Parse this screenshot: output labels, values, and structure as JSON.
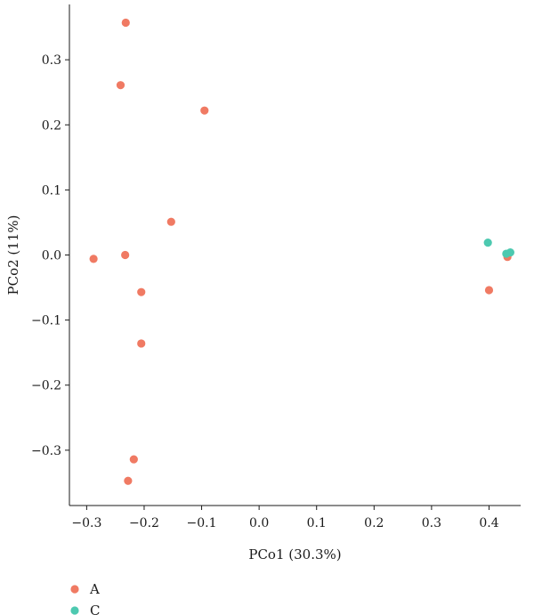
{
  "chart_data": {
    "type": "scatter",
    "title": "",
    "xlabel": "PCo1 (30.3%)",
    "ylabel": "PCo2 (11%)",
    "xlim": [
      -0.33,
      0.455
    ],
    "ylim": [
      -0.385,
      0.385
    ],
    "xticks": [
      -0.3,
      -0.2,
      -0.1,
      0.0,
      0.1,
      0.2,
      0.3,
      0.4
    ],
    "xtick_labels": [
      "−0.3",
      "−0.2",
      "−0.1",
      "0.0",
      "0.1",
      "0.2",
      "0.3",
      "0.4"
    ],
    "yticks": [
      -0.3,
      -0.2,
      -0.1,
      0.0,
      0.1,
      0.2,
      0.3
    ],
    "ytick_labels": [
      "−0.3",
      "−0.2",
      "−0.1",
      "0.0",
      "0.1",
      "0.2",
      "0.3"
    ],
    "grid": false,
    "legend_position": "bottom-left",
    "series": [
      {
        "name": "A",
        "color": "#f07a63",
        "points": [
          {
            "x": -0.232,
            "y": 0.357
          },
          {
            "x": -0.241,
            "y": 0.261
          },
          {
            "x": -0.095,
            "y": 0.222
          },
          {
            "x": -0.153,
            "y": 0.051
          },
          {
            "x": -0.288,
            "y": -0.006
          },
          {
            "x": -0.233,
            "y": 0.0
          },
          {
            "x": -0.205,
            "y": -0.057
          },
          {
            "x": -0.205,
            "y": -0.136
          },
          {
            "x": -0.218,
            "y": -0.314
          },
          {
            "x": -0.228,
            "y": -0.347
          },
          {
            "x": 0.4,
            "y": -0.054
          },
          {
            "x": 0.432,
            "y": -0.003
          }
        ]
      },
      {
        "name": "C",
        "color": "#4dc9b0",
        "points": [
          {
            "x": 0.398,
            "y": 0.019
          },
          {
            "x": 0.43,
            "y": 0.002
          },
          {
            "x": 0.437,
            "y": 0.004
          }
        ]
      }
    ]
  }
}
